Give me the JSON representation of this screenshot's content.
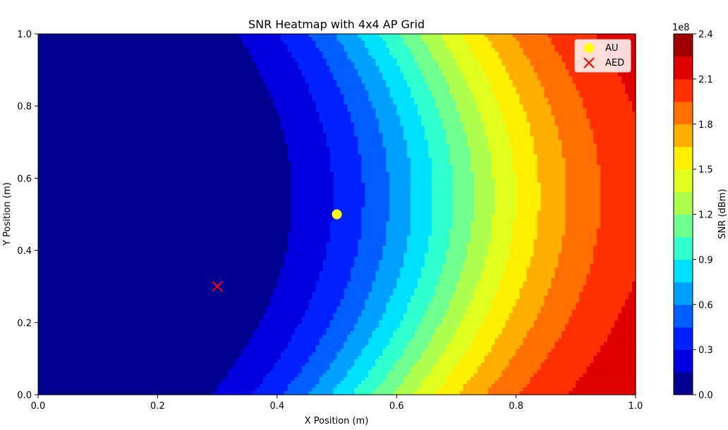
{
  "chart_data": {
    "type": "heatmap",
    "subtype": "filled-contour",
    "title": "SNR Heatmap with 4x4 AP Grid",
    "xlabel": "X Position (m)",
    "ylabel": "Y Position (m)",
    "xlim": [
      0.0,
      1.0
    ],
    "ylim": [
      0.0,
      1.0
    ],
    "x_ticks": [
      "0.0",
      "0.2",
      "0.4",
      "0.6",
      "0.8",
      "1.0"
    ],
    "y_ticks": [
      "0.0",
      "0.2",
      "0.4",
      "0.6",
      "0.8",
      "1.0"
    ],
    "grid": false,
    "colorbar": {
      "label": "SNR (dBm)",
      "exponent_label": "1e8",
      "range": [
        0.0,
        2.4
      ],
      "tick_labels": [
        "0.0",
        "0.3",
        "0.6",
        "0.9",
        "1.2",
        "1.5",
        "1.8",
        "2.1",
        "2.4"
      ],
      "levels": [
        0.0,
        0.15,
        0.3,
        0.45,
        0.6,
        0.75,
        0.9,
        1.05,
        1.2,
        1.35,
        1.5,
        1.65,
        1.8,
        1.95,
        2.1,
        2.25,
        2.4
      ],
      "colors": [
        "#00008f",
        "#0000df",
        "#0020ff",
        "#0060ff",
        "#00a0ff",
        "#00e0ff",
        "#2fffcf",
        "#6fff8f",
        "#afff4f",
        "#dfff1f",
        "#ffef00",
        "#ffaf00",
        "#ff7000",
        "#ff3000",
        "#df0000",
        "#9f0000"
      ]
    },
    "markers": [
      {
        "name": "AU",
        "x": 0.5,
        "y": 0.5,
        "shape": "circle",
        "color": "#ffff00"
      },
      {
        "name": "AED",
        "x": 0.3,
        "y": 0.3,
        "shape": "x",
        "color": "#ff0000"
      }
    ],
    "legend": {
      "position": "top-right",
      "entries": [
        "AU",
        "AED"
      ]
    },
    "field_model": "smooth SNR field in the chart's data units: lowest region near the left edge at y≈0.4, rising steeply toward the right, peak (~2.4e8) at x=1.0, y≈0.55"
  }
}
